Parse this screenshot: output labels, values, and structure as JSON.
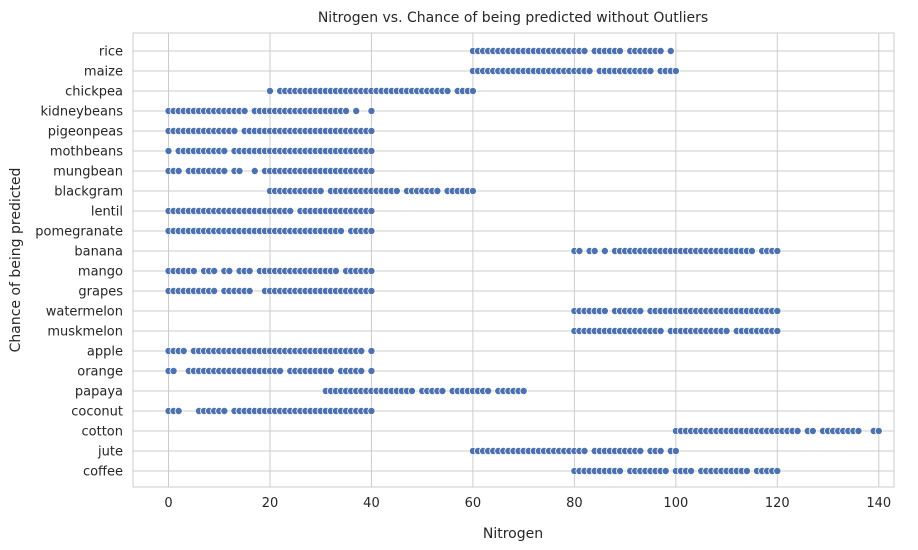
{
  "chart_data": {
    "type": "scatter",
    "title": "Nitrogen vs. Chance of being predicted without Outliers",
    "xlabel": "Nitrogen",
    "ylabel": "Chance of being predicted",
    "xlim": [
      -7,
      143
    ],
    "xticks": [
      0,
      20,
      40,
      60,
      80,
      100,
      120,
      140
    ],
    "grid": true,
    "marker_color": "#4c72b0",
    "categories": [
      "rice",
      "maize",
      "chickpea",
      "kidneybeans",
      "pigeonpeas",
      "mothbeans",
      "mungbean",
      "blackgram",
      "lentil",
      "pomegranate",
      "banana",
      "mango",
      "grapes",
      "watermelon",
      "muskmelon",
      "apple",
      "orange",
      "papaya",
      "coconut",
      "cotton",
      "jute",
      "coffee"
    ],
    "series": [
      {
        "category": "rice",
        "x": [
          60,
          61,
          62,
          63,
          64,
          65,
          66,
          67,
          68,
          69,
          70,
          71,
          72,
          73,
          74,
          75,
          76,
          77,
          78,
          79,
          80,
          81,
          82,
          84,
          85,
          86,
          87,
          88,
          89,
          91,
          92,
          93,
          94,
          95,
          96,
          97,
          99
        ]
      },
      {
        "category": "maize",
        "x": [
          60,
          61,
          62,
          63,
          64,
          65,
          66,
          67,
          68,
          69,
          70,
          71,
          72,
          73,
          74,
          75,
          76,
          77,
          78,
          79,
          80,
          81,
          82,
          83,
          85,
          86,
          87,
          88,
          89,
          90,
          91,
          92,
          93,
          94,
          95,
          97,
          98,
          99,
          100
        ]
      },
      {
        "category": "chickpea",
        "x": [
          20,
          22,
          23,
          24,
          25,
          26,
          27,
          28,
          29,
          30,
          31,
          32,
          33,
          34,
          35,
          36,
          37,
          38,
          39,
          40,
          41,
          42,
          43,
          44,
          45,
          46,
          47,
          48,
          49,
          50,
          51,
          52,
          53,
          54,
          55,
          57,
          58,
          59,
          60
        ]
      },
      {
        "category": "kidneybeans",
        "x": [
          0,
          1,
          2,
          3,
          4,
          5,
          6,
          7,
          8,
          9,
          10,
          11,
          12,
          13,
          14,
          15,
          17,
          18,
          19,
          20,
          21,
          22,
          23,
          24,
          25,
          26,
          27,
          28,
          29,
          30,
          31,
          32,
          33,
          34,
          35,
          37,
          40
        ]
      },
      {
        "category": "pigeonpeas",
        "x": [
          0,
          1,
          2,
          3,
          4,
          5,
          6,
          7,
          8,
          9,
          10,
          11,
          12,
          13,
          15,
          16,
          17,
          18,
          19,
          20,
          21,
          22,
          23,
          24,
          25,
          26,
          27,
          28,
          29,
          30,
          31,
          32,
          33,
          34,
          35,
          36,
          37,
          38,
          39,
          40
        ]
      },
      {
        "category": "mothbeans",
        "x": [
          0,
          2,
          3,
          4,
          5,
          6,
          7,
          8,
          9,
          10,
          11,
          13,
          14,
          15,
          16,
          17,
          18,
          19,
          20,
          21,
          22,
          23,
          24,
          25,
          26,
          27,
          28,
          29,
          30,
          31,
          32,
          33,
          34,
          35,
          36,
          37,
          38,
          39,
          40
        ]
      },
      {
        "category": "mungbean",
        "x": [
          0,
          1,
          2,
          4,
          5,
          6,
          7,
          8,
          9,
          10,
          11,
          13,
          14,
          17,
          19,
          20,
          21,
          22,
          23,
          24,
          25,
          26,
          27,
          28,
          29,
          30,
          31,
          32,
          33,
          34,
          35,
          36,
          37,
          38,
          39,
          40
        ]
      },
      {
        "category": "blackgram",
        "x": [
          20,
          21,
          22,
          23,
          24,
          25,
          26,
          27,
          28,
          29,
          30,
          32,
          33,
          34,
          35,
          36,
          37,
          38,
          39,
          40,
          41,
          42,
          43,
          44,
          45,
          47,
          48,
          49,
          50,
          51,
          52,
          53,
          55,
          56,
          57,
          58,
          59,
          60
        ]
      },
      {
        "category": "lentil",
        "x": [
          0,
          1,
          2,
          3,
          4,
          5,
          6,
          7,
          8,
          9,
          10,
          11,
          12,
          13,
          14,
          15,
          16,
          17,
          18,
          19,
          20,
          21,
          22,
          23,
          24,
          26,
          27,
          28,
          29,
          30,
          31,
          32,
          33,
          34,
          35,
          36,
          37,
          38,
          39,
          40
        ]
      },
      {
        "category": "pomegranate",
        "x": [
          0,
          1,
          2,
          3,
          4,
          5,
          6,
          7,
          8,
          9,
          10,
          11,
          12,
          13,
          14,
          15,
          16,
          17,
          18,
          19,
          20,
          21,
          22,
          23,
          24,
          25,
          26,
          27,
          28,
          29,
          30,
          31,
          32,
          33,
          34,
          36,
          37,
          38,
          39,
          40
        ]
      },
      {
        "category": "banana",
        "x": [
          80,
          81,
          83,
          84,
          86,
          88,
          89,
          90,
          91,
          92,
          93,
          94,
          95,
          96,
          97,
          98,
          99,
          100,
          101,
          102,
          103,
          104,
          105,
          106,
          107,
          108,
          109,
          110,
          111,
          112,
          113,
          114,
          115,
          117,
          118,
          119,
          120
        ]
      },
      {
        "category": "mango",
        "x": [
          0,
          1,
          2,
          3,
          4,
          5,
          7,
          8,
          9,
          11,
          12,
          14,
          15,
          16,
          18,
          19,
          20,
          21,
          22,
          23,
          24,
          25,
          26,
          27,
          28,
          29,
          30,
          31,
          32,
          33,
          35,
          36,
          37,
          38,
          39,
          40
        ]
      },
      {
        "category": "grapes",
        "x": [
          0,
          1,
          2,
          3,
          4,
          5,
          6,
          7,
          8,
          9,
          11,
          12,
          13,
          14,
          15,
          16,
          19,
          20,
          21,
          22,
          23,
          24,
          25,
          26,
          27,
          28,
          29,
          30,
          31,
          32,
          33,
          34,
          35,
          36,
          37,
          38,
          39,
          40
        ]
      },
      {
        "category": "watermelon",
        "x": [
          80,
          81,
          82,
          83,
          84,
          85,
          86,
          88,
          89,
          90,
          91,
          92,
          93,
          95,
          96,
          97,
          98,
          99,
          100,
          101,
          102,
          103,
          104,
          105,
          106,
          107,
          108,
          109,
          110,
          111,
          112,
          113,
          114,
          115,
          116,
          117,
          118,
          119,
          120
        ]
      },
      {
        "category": "muskmelon",
        "x": [
          80,
          81,
          82,
          83,
          84,
          85,
          86,
          87,
          88,
          89,
          90,
          91,
          92,
          93,
          94,
          95,
          96,
          97,
          99,
          100,
          101,
          102,
          103,
          104,
          105,
          106,
          107,
          108,
          109,
          110,
          112,
          113,
          114,
          115,
          116,
          117,
          118,
          119,
          120
        ]
      },
      {
        "category": "apple",
        "x": [
          0,
          1,
          2,
          3,
          5,
          6,
          7,
          8,
          9,
          10,
          11,
          12,
          13,
          14,
          15,
          16,
          17,
          18,
          19,
          20,
          21,
          22,
          23,
          24,
          25,
          26,
          27,
          28,
          29,
          30,
          31,
          32,
          33,
          34,
          35,
          36,
          37,
          38,
          40
        ]
      },
      {
        "category": "orange",
        "x": [
          0,
          1,
          4,
          5,
          6,
          7,
          8,
          9,
          10,
          11,
          12,
          13,
          14,
          15,
          16,
          17,
          18,
          19,
          20,
          21,
          22,
          24,
          25,
          26,
          27,
          28,
          29,
          30,
          31,
          32,
          34,
          35,
          36,
          37,
          38,
          40
        ]
      },
      {
        "category": "papaya",
        "x": [
          31,
          32,
          33,
          34,
          35,
          36,
          37,
          38,
          39,
          40,
          41,
          42,
          43,
          44,
          45,
          46,
          47,
          48,
          50,
          51,
          52,
          53,
          54,
          56,
          57,
          58,
          59,
          60,
          61,
          62,
          63,
          65,
          66,
          67,
          68,
          69,
          70
        ]
      },
      {
        "category": "coconut",
        "x": [
          0,
          1,
          2,
          6,
          7,
          8,
          9,
          10,
          11,
          13,
          14,
          15,
          16,
          17,
          18,
          19,
          20,
          21,
          22,
          23,
          24,
          25,
          26,
          27,
          28,
          29,
          30,
          31,
          32,
          33,
          34,
          35,
          36,
          37,
          38,
          39,
          40
        ]
      },
      {
        "category": "cotton",
        "x": [
          100,
          101,
          102,
          103,
          104,
          105,
          106,
          107,
          108,
          109,
          110,
          111,
          112,
          113,
          114,
          115,
          116,
          117,
          118,
          119,
          120,
          121,
          122,
          123,
          124,
          126,
          127,
          129,
          130,
          131,
          132,
          133,
          134,
          135,
          136,
          139,
          140
        ]
      },
      {
        "category": "jute",
        "x": [
          60,
          61,
          62,
          63,
          64,
          65,
          66,
          67,
          68,
          69,
          70,
          71,
          72,
          73,
          74,
          75,
          76,
          77,
          78,
          79,
          80,
          81,
          82,
          84,
          85,
          86,
          87,
          88,
          89,
          90,
          91,
          92,
          93,
          95,
          96,
          97,
          99,
          100
        ]
      },
      {
        "category": "coffee",
        "x": [
          80,
          81,
          82,
          83,
          84,
          85,
          86,
          87,
          88,
          89,
          91,
          92,
          93,
          94,
          95,
          96,
          97,
          98,
          100,
          101,
          102,
          103,
          105,
          106,
          107,
          108,
          109,
          110,
          111,
          112,
          113,
          114,
          116,
          117,
          118,
          119,
          120
        ]
      }
    ]
  }
}
